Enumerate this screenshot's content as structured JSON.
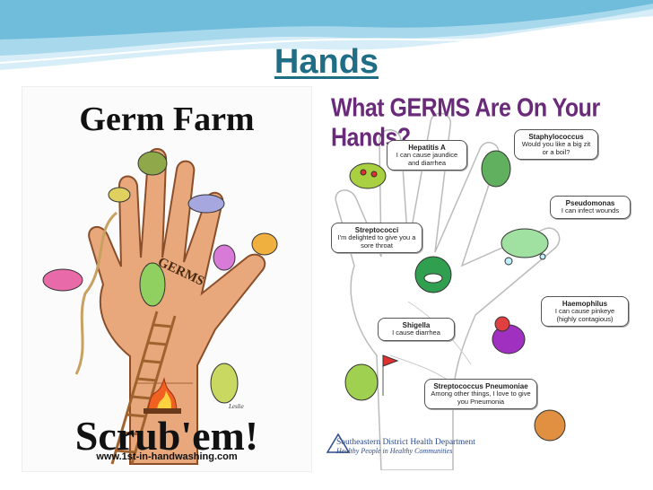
{
  "slide": {
    "title": "Hands"
  },
  "left_poster": {
    "title": "Germ Farm",
    "germs_label": "GERMS",
    "slogan": "Scrub'em!",
    "url": "www.1st-in-handwashing.com"
  },
  "right_poster": {
    "title": "What GERMS Are On Your Hands?",
    "bubbles": [
      {
        "name": "Hepatitis A",
        "text": "I can cause jaundice and diarrhea"
      },
      {
        "name": "Staphylococcus",
        "text": "Would you like a big zit or a boil?"
      },
      {
        "name": "Pseudomonas",
        "text": "I can infect wounds"
      },
      {
        "name": "Streptococci",
        "text": "I'm delighted to give you a sore throat"
      },
      {
        "name": "Haemophilus",
        "text": "I can cause pinkeye (highly contagious)"
      },
      {
        "name": "Shigella",
        "text": "I cause diarrhea"
      },
      {
        "name": "Streptococcus Pneumoniae",
        "text": "Among other things, I love to give you Pneumonia"
      }
    ],
    "department": "Southeastern District Health Department",
    "department_slogan": "Healthy People in Healthy Communities"
  },
  "colors": {
    "title": "#1f6e86",
    "wave_light": "#bfe3f2",
    "wave_dark": "#5fb2d3",
    "poster_title_purple": "#6a2a7a",
    "skin": "#e8a87c"
  }
}
